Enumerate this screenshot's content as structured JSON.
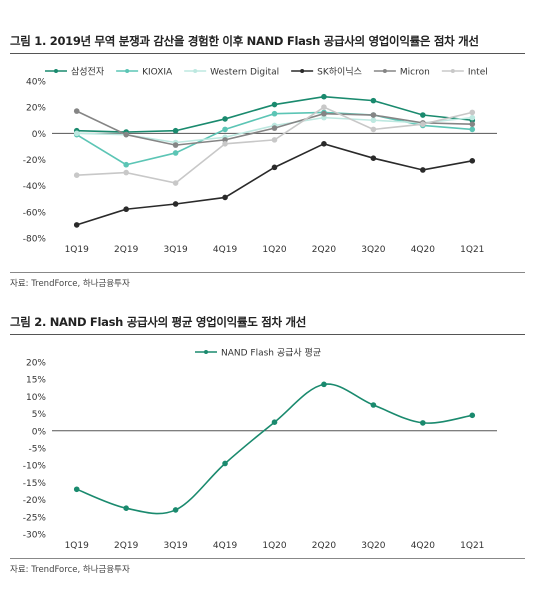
{
  "figures": {
    "fig1": {
      "title": "그림 1. 2019년 무역 분쟁과 감산을 경험한 이후 NAND Flash 공급사의 영업이익률은 점차 개선",
      "source": "자료: TrendForce, 하나금융투자"
    },
    "fig2": {
      "title": "그림 2. NAND Flash 공급사의 평균 영업이익률도 점차 개선",
      "source": "자료: TrendForce, 하나금융투자"
    }
  },
  "chart_data": [
    {
      "type": "line",
      "title": "그림 1. 2019년 무역 분쟁과 감산을 경험한 이후 NAND Flash 공급사의 영업이익률은 점차 개선",
      "categories": [
        "1Q19",
        "2Q19",
        "3Q19",
        "4Q19",
        "1Q20",
        "2Q20",
        "3Q20",
        "4Q20",
        "1Q21"
      ],
      "ylim": [
        -80,
        40
      ],
      "yticks": [
        -80,
        -60,
        -40,
        -20,
        0,
        20,
        40
      ],
      "ytick_labels": [
        "-80%",
        "-60%",
        "-40%",
        "-20%",
        "0%",
        "20%",
        "40%"
      ],
      "smooth": false,
      "legend_position": "top",
      "series": [
        {
          "name": "삼성전자",
          "color": "#1a8a6e",
          "values": [
            2,
            1,
            2,
            11,
            22,
            28,
            25,
            14,
            10
          ]
        },
        {
          "name": "KIOXIA",
          "color": "#5cc5b5",
          "values": [
            -1,
            -24,
            -15,
            3,
            15,
            16,
            14,
            6,
            3
          ]
        },
        {
          "name": "Western Digital",
          "color": "#bde8e0",
          "values": [
            0,
            -1,
            -7,
            -3,
            6,
            12,
            10,
            8,
            12
          ]
        },
        {
          "name": "SK하이닉스",
          "color": "#2a2a2a",
          "values": [
            -70,
            -58,
            -54,
            -49,
            -26,
            -8,
            -19,
            -28,
            -21
          ]
        },
        {
          "name": "Micron",
          "color": "#858585",
          "values": [
            17,
            -1,
            -9,
            -5,
            4,
            15,
            14,
            8,
            7
          ]
        },
        {
          "name": "Intel",
          "color": "#c8c8c8",
          "values": [
            -32,
            -30,
            -38,
            -8,
            -5,
            20,
            3,
            7,
            16
          ]
        }
      ]
    },
    {
      "type": "line",
      "title": "그림 2. NAND Flash 공급사의 평균 영업이익률도 점차 개선",
      "categories": [
        "1Q19",
        "2Q19",
        "3Q19",
        "4Q19",
        "1Q20",
        "2Q20",
        "3Q20",
        "4Q20",
        "1Q21"
      ],
      "ylim": [
        -30,
        20
      ],
      "yticks": [
        -30,
        -25,
        -20,
        -15,
        -10,
        -5,
        0,
        5,
        10,
        15,
        20
      ],
      "ytick_labels": [
        "-30%",
        "-25%",
        "-20%",
        "-15%",
        "-10%",
        "-5%",
        "0%",
        "5%",
        "10%",
        "15%",
        "20%"
      ],
      "smooth": true,
      "legend_position": "top",
      "series": [
        {
          "name": "NAND Flash 공급사 평균",
          "color": "#1a8a6e",
          "values": [
            -17,
            -22.5,
            -23,
            -9.5,
            2.5,
            13.5,
            7.5,
            2.3,
            4.5
          ]
        }
      ]
    }
  ]
}
